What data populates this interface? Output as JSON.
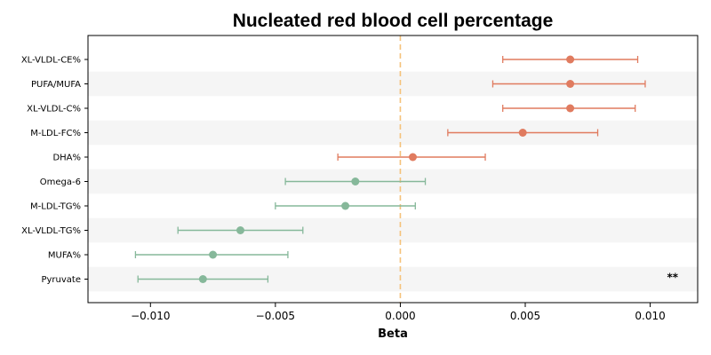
{
  "chart_data": {
    "type": "forest",
    "title": "Nucleated red blood cell percentage",
    "xlabel": "Beta",
    "xlim": [
      -0.0125,
      0.0119
    ],
    "xticks": [
      -0.01,
      -0.005,
      0.0,
      0.005,
      0.01
    ],
    "xtick_labels": [
      "−0.010",
      "−0.005",
      "0.000",
      "0.005",
      "0.010"
    ],
    "reference_line": 0.0,
    "colors": {
      "positive": "#e07b5f",
      "negative": "#86b89a",
      "reference": "#f5c27a",
      "band": "#f5f5f5"
    },
    "rows": [
      {
        "label": "XL-VLDL-CE%",
        "beta": 0.0068,
        "lower": 0.0041,
        "upper": 0.0095
      },
      {
        "label": "PUFA/MUFA",
        "beta": 0.0068,
        "lower": 0.0037,
        "upper": 0.0098
      },
      {
        "label": "XL-VLDL-C%",
        "beta": 0.0068,
        "lower": 0.0041,
        "upper": 0.0094
      },
      {
        "label": "M-LDL-FC%",
        "beta": 0.0049,
        "lower": 0.0019,
        "upper": 0.0079
      },
      {
        "label": "DHA%",
        "beta": 0.0005,
        "lower": -0.0025,
        "upper": 0.0034
      },
      {
        "label": "Omega-6",
        "beta": -0.0018,
        "lower": -0.0046,
        "upper": 0.001
      },
      {
        "label": "M-LDL-TG%",
        "beta": -0.0022,
        "lower": -0.005,
        "upper": 0.0006
      },
      {
        "label": "XL-VLDL-TG%",
        "beta": -0.0064,
        "lower": -0.0089,
        "upper": -0.0039
      },
      {
        "label": "MUFA%",
        "beta": -0.0075,
        "lower": -0.0106,
        "upper": -0.0045
      },
      {
        "label": "Pyruvate",
        "beta": -0.0079,
        "lower": -0.0105,
        "upper": -0.0053
      }
    ],
    "annotations": [
      {
        "text": "**",
        "row": "Pyruvate",
        "position": "right"
      }
    ]
  }
}
